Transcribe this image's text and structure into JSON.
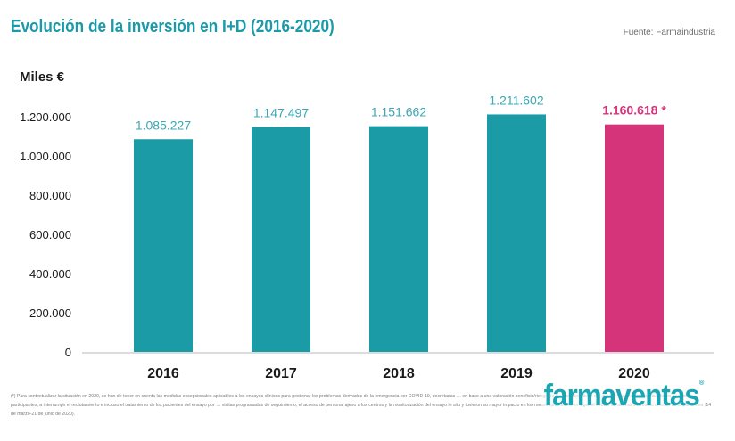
{
  "header": {
    "title": "Evolución de la inversión en I+D (2016-2020)",
    "source": "Fuente: Farmaindustria"
  },
  "chart_data": {
    "type": "bar",
    "ylabel": "Miles €",
    "ylim": [
      0,
      1200000
    ],
    "yticks": [
      0,
      200000,
      400000,
      600000,
      800000,
      1000000,
      1200000
    ],
    "ytick_labels": [
      "0",
      "200.000",
      "400.000",
      "600.000",
      "800.000",
      "1.000.000",
      "1.200.000"
    ],
    "categories": [
      "2016",
      "2017",
      "2018",
      "2019",
      "2020"
    ],
    "values": [
      1085227,
      1147497,
      1151662,
      1211602,
      1160618
    ],
    "value_labels": [
      "1.085.227",
      "1.147.497",
      "1.151.662",
      "1.211.602",
      "1.160.618 *"
    ],
    "colors": [
      "#1a9ba5",
      "#1a9ba5",
      "#1a9ba5",
      "#1a9ba5",
      "#d6347a"
    ],
    "label_colors": [
      "#3aa8b5",
      "#3aa8b5",
      "#3aa8b5",
      "#3aa8b5",
      "#d6347a"
    ],
    "grid": false
  },
  "footnote": "(*) Para contextualizar la situación en 2020, se han de tener en cuenta las medidas excepcionales aplicables a los ensayos clínicos para gestionar los problemas derivados de la emergencia por COVID-19, decretadas … en base a una valoración beneficio/riesgo de las características del ensayo y las circunstancias de los centros participantes, a interrumpir el reclutamiento e incluso el tratamiento de los pacientes del ensayo por … visitas programadas de seguimiento, el acceso de personal ajeno a los centros y la monitorización del ensayo in situ y tuvieron su mayor impacto en los meses que estuvo en vigor el estado de alarma decretado al inicio de la pandemia (14 de marzo-21 de junio de 2020).",
  "watermark": {
    "text": "farmaventas",
    "mark": "®"
  }
}
